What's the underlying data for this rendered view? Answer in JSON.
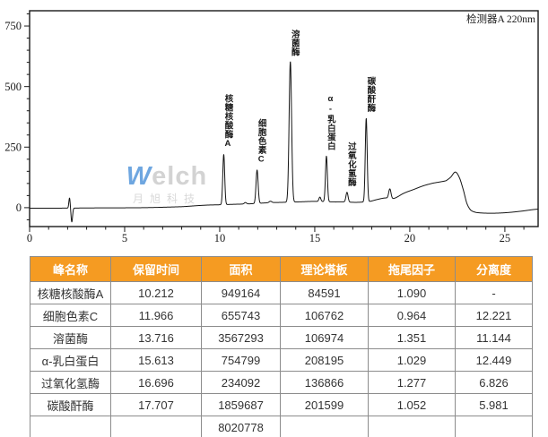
{
  "watermark": {
    "brand_w": "W",
    "brand_rest": "elch",
    "subtext": "月旭科技"
  },
  "chart_data": {
    "type": "line",
    "title": "检测器A 220nm",
    "xlabel": "",
    "ylabel": "",
    "xlim": [
      0,
      26.75
    ],
    "ylim": [
      -78,
      813
    ],
    "x_major_ticks": [
      0,
      5,
      10,
      15,
      20,
      25
    ],
    "x_minor_step": 1,
    "y_major_ticks": [
      0,
      250,
      500,
      750
    ],
    "y_minor_step": 50,
    "grid": false,
    "legend": false,
    "line_color": "#141414",
    "peaks": [
      {
        "name": "核糖核酸酶A",
        "retention_time": 10.212,
        "apex_height": 219,
        "gauss_height": 207,
        "sigma": 0.05
      },
      {
        "name": "细胞色素C",
        "retention_time": 11.966,
        "apex_height": 155,
        "gauss_height": 138,
        "sigma": 0.055
      },
      {
        "name": "溶菌酶",
        "retention_time": 13.716,
        "apex_height": 602,
        "gauss_height": 580,
        "sigma": 0.065
      },
      {
        "name": "α-乳白蛋白",
        "retention_time": 15.613,
        "apex_height": 214,
        "gauss_height": 188,
        "sigma": 0.05
      },
      {
        "name": "过氧化氢酶",
        "retention_time": 16.696,
        "apex_height": 64,
        "gauss_height": 40,
        "sigma": 0.055
      },
      {
        "name": "碳酸酐酶",
        "retention_time": 17.707,
        "apex_height": 370,
        "gauss_height": 344,
        "sigma": 0.05
      }
    ],
    "unlabeled_features": [
      {
        "time": 2.1,
        "height": 42,
        "sigma": 0.035
      },
      {
        "time": 2.22,
        "height": -57,
        "sigma": 0.04
      },
      {
        "time": 11.35,
        "height": 6,
        "sigma": 0.06
      },
      {
        "time": 12.67,
        "height": 6,
        "sigma": 0.07
      },
      {
        "time": 15.27,
        "height": 18,
        "sigma": 0.05
      },
      {
        "time": 18.95,
        "height": 40,
        "sigma": 0.06
      }
    ],
    "baseline_points": [
      [
        0,
        -2
      ],
      [
        1.6,
        -2
      ],
      [
        3.5,
        -1
      ],
      [
        6,
        0
      ],
      [
        8,
        4
      ],
      [
        9.2,
        10
      ],
      [
        10,
        12
      ],
      [
        10.8,
        14
      ],
      [
        11.6,
        16
      ],
      [
        12.5,
        20
      ],
      [
        13.3,
        22
      ],
      [
        14.2,
        24
      ],
      [
        15,
        26
      ],
      [
        16,
        24
      ],
      [
        16.5,
        24
      ],
      [
        17.2,
        22
      ],
      [
        17.9,
        26
      ],
      [
        18.3,
        34
      ],
      [
        18.7,
        40
      ],
      [
        19.15,
        38
      ],
      [
        19.7,
        60
      ],
      [
        20.2,
        75
      ],
      [
        20.7,
        90
      ],
      [
        21.2,
        101
      ],
      [
        21.9,
        111
      ],
      [
        22.15,
        126
      ],
      [
        22.4,
        147
      ],
      [
        22.62,
        122
      ],
      [
        22.82,
        72
      ],
      [
        23.0,
        18
      ],
      [
        23.2,
        -10
      ],
      [
        23.5,
        -20
      ],
      [
        24.2,
        -23
      ],
      [
        25.0,
        -21
      ],
      [
        25.8,
        -15
      ],
      [
        26.75,
        -6
      ]
    ]
  },
  "table": {
    "header_bg": "#F59B22",
    "header_text_color": "#FFFFFF",
    "columns": [
      "峰名称",
      "保留时间",
      "面积",
      "理论塔板",
      "拖尾因子",
      "分离度"
    ],
    "rows": [
      [
        "核糖核酸酶A",
        "10.212",
        "949164",
        "84591",
        "1.090",
        "-"
      ],
      [
        "细胞色素C",
        "11.966",
        "655743",
        "106762",
        "0.964",
        "12.221"
      ],
      [
        "溶菌酶",
        "13.716",
        "3567293",
        "106974",
        "1.351",
        "11.144"
      ],
      [
        "α-乳白蛋白",
        "15.613",
        "754799",
        "208195",
        "1.029",
        "12.449"
      ],
      [
        "过氧化氢酶",
        "16.696",
        "234092",
        "136866",
        "1.277",
        "6.826"
      ],
      [
        "碳酸酐酶",
        "17.707",
        "1859687",
        "201599",
        "1.052",
        "5.981"
      ],
      [
        "",
        "",
        "8020778",
        "",
        "",
        ""
      ]
    ]
  }
}
